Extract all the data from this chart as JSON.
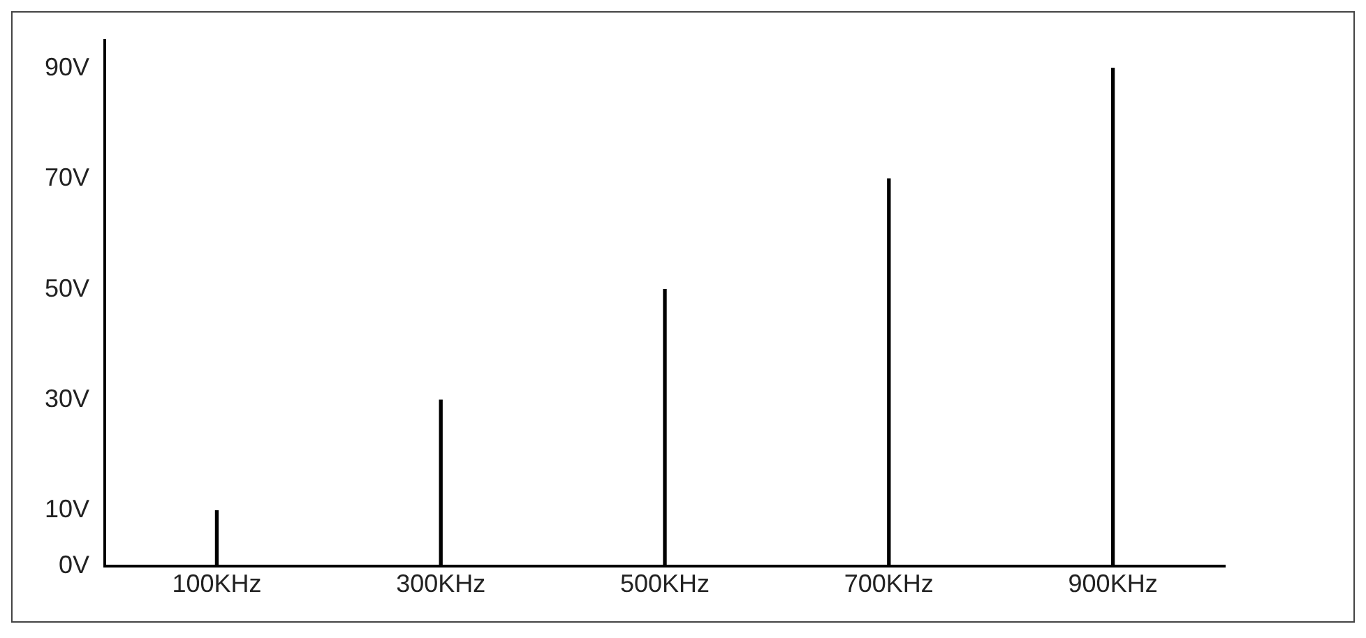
{
  "chart_data": {
    "type": "bar",
    "categories": [
      "100KHz",
      "300KHz",
      "500KHz",
      "700KHz",
      "900KHz"
    ],
    "values": [
      10,
      30,
      50,
      70,
      90
    ],
    "color": "#000000",
    "ylim": [
      0,
      95
    ],
    "yticks": [
      {
        "value": 0,
        "label": "0V"
      },
      {
        "value": 10,
        "label": "10V"
      },
      {
        "value": 30,
        "label": "30V"
      },
      {
        "value": 50,
        "label": "50V"
      },
      {
        "value": 70,
        "label": "70V"
      },
      {
        "value": 90,
        "label": "90V"
      }
    ],
    "grid": false,
    "legend": false
  }
}
